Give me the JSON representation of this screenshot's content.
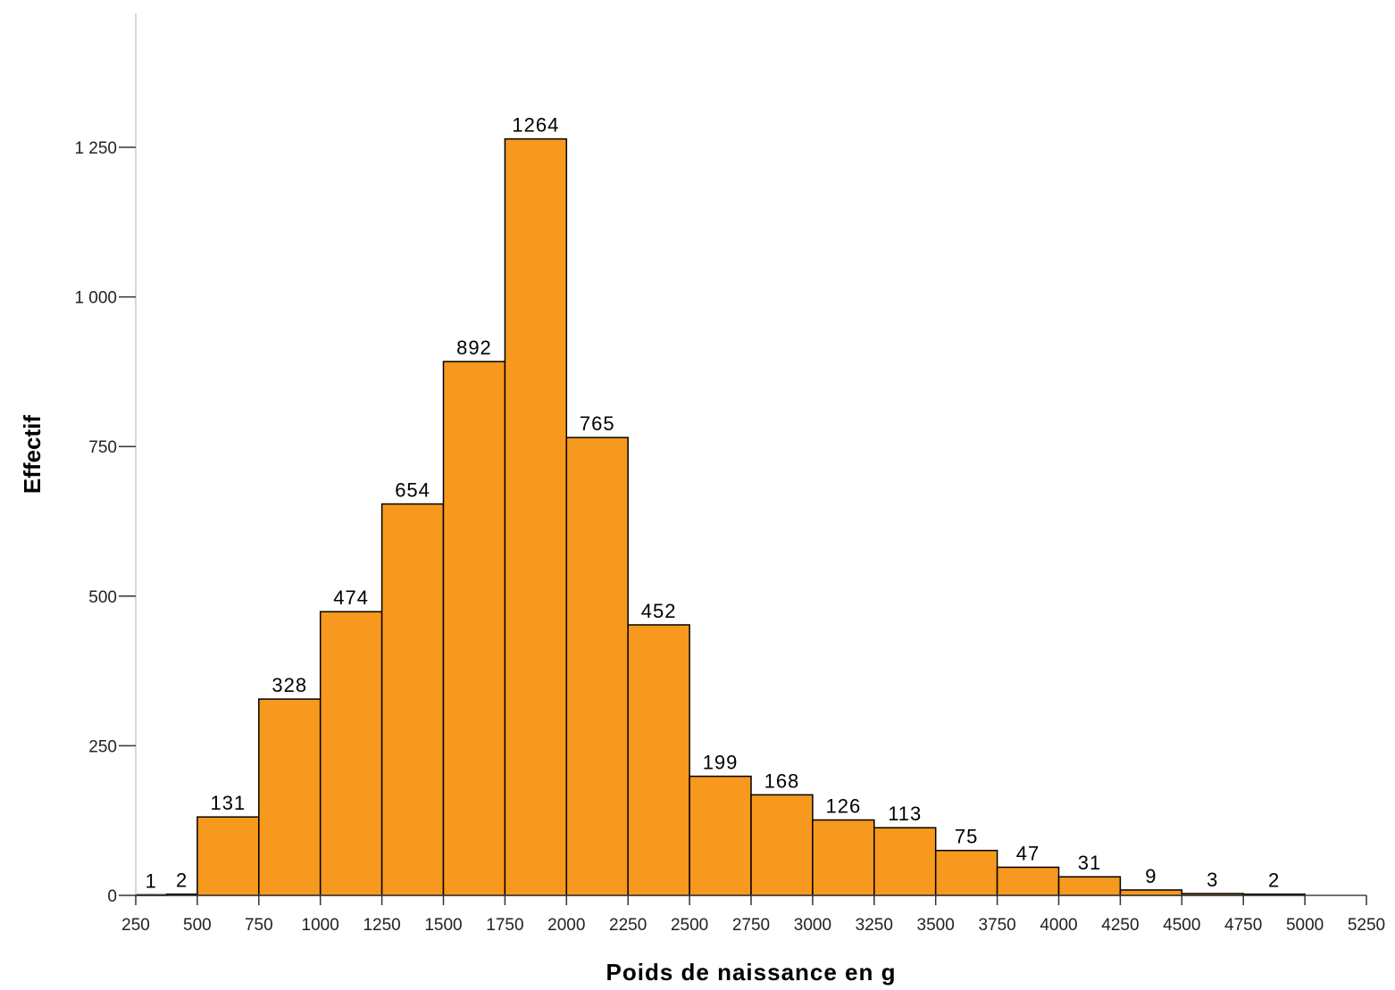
{
  "chart_data": {
    "type": "bar",
    "xlabel": "Poids de naissance en g",
    "ylabel": "Effectif",
    "bins": [
      {
        "x0": 250,
        "x1": 375,
        "value": 1,
        "label": "1"
      },
      {
        "x0": 375,
        "x1": 500,
        "value": 2,
        "label": "2"
      },
      {
        "x0": 500,
        "x1": 750,
        "value": 131,
        "label": "131"
      },
      {
        "x0": 750,
        "x1": 1000,
        "value": 328,
        "label": "328"
      },
      {
        "x0": 1000,
        "x1": 1250,
        "value": 474,
        "label": "474"
      },
      {
        "x0": 1250,
        "x1": 1500,
        "value": 654,
        "label": "654"
      },
      {
        "x0": 1500,
        "x1": 1750,
        "value": 892,
        "label": "892"
      },
      {
        "x0": 1750,
        "x1": 2000,
        "value": 1264,
        "label": "1264"
      },
      {
        "x0": 2000,
        "x1": 2250,
        "value": 765,
        "label": "765"
      },
      {
        "x0": 2250,
        "x1": 2500,
        "value": 452,
        "label": "452"
      },
      {
        "x0": 2500,
        "x1": 2750,
        "value": 199,
        "label": "199"
      },
      {
        "x0": 2750,
        "x1": 3000,
        "value": 168,
        "label": "168"
      },
      {
        "x0": 3000,
        "x1": 3250,
        "value": 126,
        "label": "126"
      },
      {
        "x0": 3250,
        "x1": 3500,
        "value": 113,
        "label": "113"
      },
      {
        "x0": 3500,
        "x1": 3750,
        "value": 75,
        "label": "75"
      },
      {
        "x0": 3750,
        "x1": 4000,
        "value": 47,
        "label": "47"
      },
      {
        "x0": 4000,
        "x1": 4250,
        "value": 31,
        "label": "31"
      },
      {
        "x0": 4250,
        "x1": 4500,
        "value": 9,
        "label": "9"
      },
      {
        "x0": 4500,
        "x1": 4750,
        "value": 3,
        "label": "3"
      },
      {
        "x0": 4750,
        "x1": 5000,
        "value": 2,
        "label": "2"
      }
    ],
    "xlim": [
      250,
      5250
    ],
    "ylim": [
      0,
      1500
    ],
    "x_ticks": [
      250,
      500,
      750,
      1000,
      1250,
      1500,
      1750,
      2000,
      2250,
      2500,
      2750,
      3000,
      3250,
      3500,
      3750,
      4000,
      4250,
      4500,
      4750,
      5000,
      5250
    ],
    "x_tick_labels": [
      "250",
      "500",
      "750",
      "1000",
      "1250",
      "1500",
      "1750",
      "2000",
      "2250",
      "2500",
      "2750",
      "3000",
      "3250",
      "3500",
      "3750",
      "4000",
      "4250",
      "4500",
      "4750",
      "5000",
      "5250"
    ],
    "y_ticks": [
      0,
      250,
      500,
      750,
      1000,
      1250
    ],
    "y_tick_labels": [
      "0",
      "250",
      "500",
      "750",
      "1 000",
      "1 250"
    ],
    "bar_color": "#f7991e",
    "grid": false,
    "legend": "none"
  }
}
